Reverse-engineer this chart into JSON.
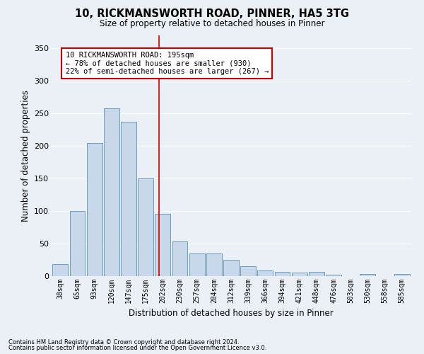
{
  "title_line1": "10, RICKMANSWORTH ROAD, PINNER, HA5 3TG",
  "title_line2": "Size of property relative to detached houses in Pinner",
  "xlabel": "Distribution of detached houses by size in Pinner",
  "ylabel": "Number of detached properties",
  "bar_color": "#c8d8ea",
  "bar_edge_color": "#6a9dc0",
  "bg_color": "#eaf0f6",
  "grid_color": "#ffffff",
  "categories": [
    "38sqm",
    "65sqm",
    "93sqm",
    "120sqm",
    "147sqm",
    "175sqm",
    "202sqm",
    "230sqm",
    "257sqm",
    "284sqm",
    "312sqm",
    "339sqm",
    "366sqm",
    "394sqm",
    "421sqm",
    "448sqm",
    "476sqm",
    "503sqm",
    "530sqm",
    "558sqm",
    "585sqm"
  ],
  "values": [
    18,
    100,
    205,
    258,
    237,
    150,
    96,
    53,
    35,
    35,
    25,
    15,
    9,
    6,
    5,
    6,
    2,
    0,
    3,
    0,
    3
  ],
  "ylim": [
    0,
    370
  ],
  "yticks": [
    0,
    50,
    100,
    150,
    200,
    250,
    300,
    350
  ],
  "marker_label_line1": "10 RICKMANSWORTH ROAD: 195sqm",
  "marker_label_line2": "← 78% of detached houses are smaller (930)",
  "marker_label_line3": "22% of semi-detached houses are larger (267) →",
  "marker_color": "#cc0000",
  "footnote_line1": "Contains HM Land Registry data © Crown copyright and database right 2024.",
  "footnote_line2": "Contains public sector information licensed under the Open Government Licence v3.0.",
  "fig_bg_color": "#eaf0f6"
}
